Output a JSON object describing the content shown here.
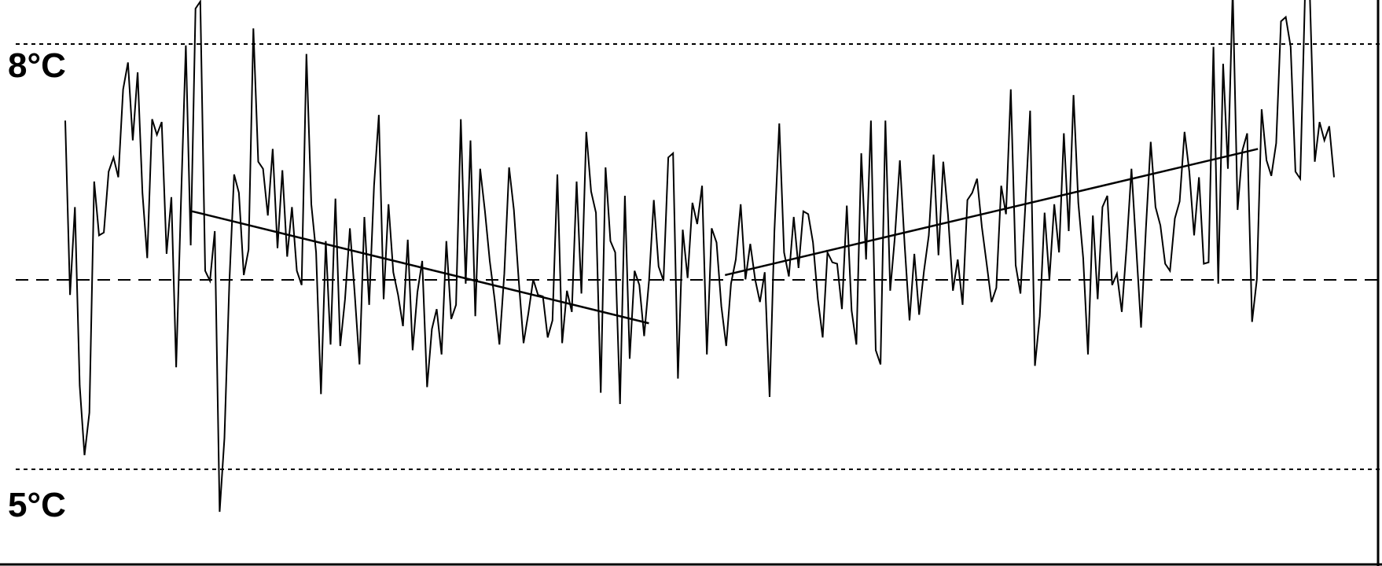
{
  "chart_data": {
    "type": "line",
    "title": "",
    "xlabel": "",
    "ylabel": "",
    "ylim": [
      4.8,
      8.43
    ],
    "grid": false,
    "y_tick_labels": [
      {
        "label": "8°C",
        "value": 8
      },
      {
        "label": "5°C",
        "value": 5
      }
    ],
    "reference_lines": [
      {
        "value": 8,
        "style": "dotted"
      },
      {
        "value": 6.66,
        "style": "dashed"
      },
      {
        "value": 5,
        "style": "dotted"
      }
    ],
    "series": [
      {
        "values": [
          7.46,
          6.23,
          6.85,
          5.59,
          5.1,
          5.4,
          7.03,
          6.65,
          6.67,
          7.1,
          7.2,
          7.06,
          7.68,
          7.87,
          7.32,
          7.8,
          6.95,
          6.49,
          7.47,
          7.36,
          7.45,
          6.52,
          6.92,
          5.72,
          6.9,
          7.99,
          6.58,
          8.25,
          8.3,
          6.4,
          6.33,
          6.68,
          4.7,
          5.22,
          6.31,
          7.08,
          6.95,
          6.37,
          6.55,
          8.11,
          7.17,
          7.12,
          6.79,
          7.26,
          6.56,
          7.11,
          6.5,
          6.85,
          6.4,
          6.3,
          7.93,
          6.87,
          6.53,
          5.53,
          6.61,
          5.88,
          6.91,
          5.87,
          6.2,
          6.7,
          6.24,
          5.74,
          6.78,
          6.16,
          7.0,
          7.5,
          6.2,
          6.87,
          6.39,
          6.23,
          6.01,
          6.62,
          5.84,
          6.25,
          6.47,
          5.58,
          5.99,
          6.13,
          5.81,
          6.61,
          6.06,
          6.16,
          7.47,
          6.31,
          7.32,
          6.08,
          7.12,
          6.82,
          6.47,
          6.2,
          5.88,
          6.38,
          7.13,
          6.83,
          6.33,
          5.89,
          6.1,
          6.34,
          6.23,
          6.22,
          5.93,
          6.05,
          7.08,
          5.89,
          6.26,
          6.11,
          7.03,
          6.24,
          7.38,
          6.96,
          6.81,
          5.54,
          7.13,
          6.61,
          6.53,
          5.46,
          6.93,
          5.78,
          6.4,
          6.3,
          5.94,
          6.33,
          6.9,
          6.43,
          6.33,
          7.2,
          7.23,
          5.64,
          6.69,
          6.35,
          6.88,
          6.73,
          7.0,
          5.81,
          6.7,
          6.6,
          6.15,
          5.87,
          6.31,
          6.48,
          6.87,
          6.34,
          6.59,
          6.34,
          6.18,
          6.39,
          5.51,
          6.68,
          7.44,
          6.53,
          6.36,
          6.78,
          6.42,
          6.82,
          6.8,
          6.6,
          6.2,
          5.93,
          6.53,
          6.46,
          6.45,
          6.13,
          6.86,
          6.12,
          5.88,
          7.23,
          6.48,
          7.46,
          5.84,
          5.74,
          7.46,
          6.26,
          6.65,
          7.18,
          6.58,
          6.05,
          6.52,
          6.09,
          6.4,
          6.65,
          7.22,
          6.51,
          7.17,
          6.79,
          6.26,
          6.48,
          6.16,
          6.9,
          6.95,
          7.05,
          6.71,
          6.45,
          6.18,
          6.28,
          7.0,
          6.8,
          7.68,
          6.44,
          6.24,
          6.85,
          7.53,
          5.73,
          6.08,
          6.81,
          6.34,
          6.87,
          6.53,
          7.37,
          6.68,
          7.64,
          6.88,
          6.49,
          5.81,
          6.79,
          6.2,
          6.85,
          6.93,
          6.3,
          6.38,
          6.11,
          6.57,
          7.12,
          6.56,
          6.0,
          6.7,
          7.31,
          6.85,
          6.72,
          6.45,
          6.4,
          6.77,
          6.89,
          7.38,
          7.1,
          6.65,
          7.06,
          6.45,
          6.46,
          7.98,
          6.31,
          7.86,
          7.12,
          8.38,
          6.83,
          7.25,
          7.37,
          6.04,
          6.34,
          7.54,
          7.18,
          7.07,
          7.3,
          8.16,
          8.19,
          7.98,
          7.1,
          7.05,
          8.38,
          8.33,
          7.17,
          7.45,
          7.32,
          7.42,
          7.06
        ]
      },
      {
        "name": "",
        "type": "trend",
        "x": [
          0.1,
          0.46
        ],
        "values": [
          6.82,
          6.03
        ]
      },
      {
        "name": "",
        "type": "trend",
        "x": [
          0.52,
          0.94
        ],
        "values": [
          6.37,
          7.26
        ]
      }
    ]
  }
}
